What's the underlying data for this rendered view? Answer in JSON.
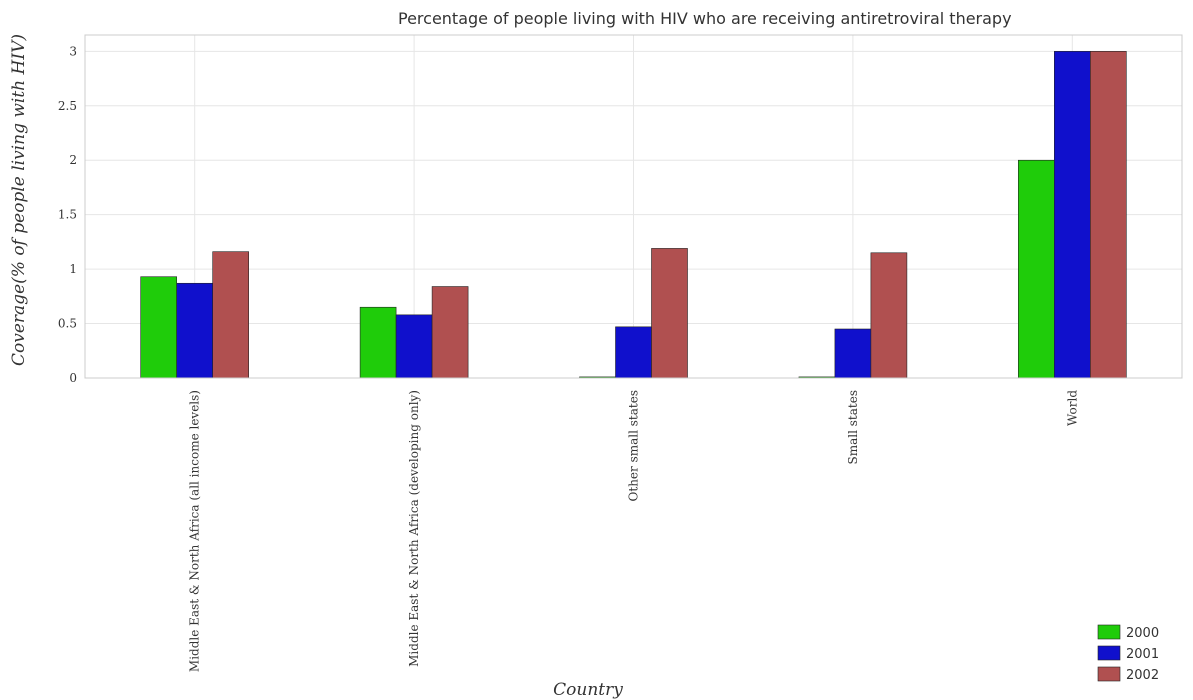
{
  "chart_data": {
    "type": "bar",
    "title": "Percentage of people living with HIV who are receiving antiretroviral therapy",
    "xlabel": "Country",
    "ylabel": "Coverage(% of people living with HIV)",
    "ylim": [
      0,
      3.15
    ],
    "yticks": [
      0,
      0.5,
      1,
      1.5,
      2,
      2.5,
      3
    ],
    "ytick_labels": [
      "0",
      "0.5",
      "1",
      "1.5",
      "2",
      "2.5",
      "3"
    ],
    "grid": true,
    "legend_position": "bottom-right",
    "categories": [
      "Middle East & North Africa (all income levels)",
      "Middle East & North Africa (developing only)",
      "Other small states",
      "Small states",
      "World"
    ],
    "series": [
      {
        "name": "2000",
        "color": "#1fcc0a",
        "values": [
          0.93,
          0.65,
          0.01,
          0.01,
          2.0
        ]
      },
      {
        "name": "2001",
        "color": "#1010cc",
        "values": [
          0.87,
          0.58,
          0.47,
          0.45,
          3.0
        ]
      },
      {
        "name": "2002",
        "color": "#b05050",
        "values": [
          1.16,
          0.84,
          1.19,
          1.15,
          3.0
        ]
      }
    ]
  }
}
